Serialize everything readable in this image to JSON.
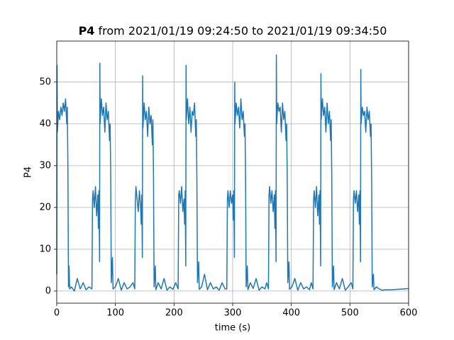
{
  "chart_data": {
    "type": "line",
    "title": {
      "bold": "P4",
      "text": "from 2021/01/19 09:24:50 to 2021/01/19 09:34:50"
    },
    "xlabel": "time (s)",
    "ylabel": "P4",
    "color": "#1f77b4",
    "grid": true,
    "xlim": [
      0,
      600
    ],
    "xticks": [
      0,
      100,
      200,
      300,
      400,
      500,
      600
    ],
    "ylim": [
      -2.9,
      59.8
    ],
    "yticks": [
      0,
      10,
      20,
      30,
      40,
      50
    ],
    "x": [
      0,
      0.5,
      1,
      3,
      5,
      7,
      9,
      11,
      13,
      15,
      17,
      18,
      19,
      20,
      21,
      22,
      25,
      30,
      35,
      40,
      45,
      50,
      55,
      60,
      61,
      62,
      64,
      66,
      68,
      70,
      71,
      72,
      73,
      73.5,
      74,
      76,
      78,
      80,
      82,
      84,
      86,
      88,
      90,
      91,
      92,
      93,
      95,
      96,
      100,
      105,
      110,
      115,
      120,
      125,
      130,
      133,
      134,
      135,
      137,
      139,
      141,
      143,
      144,
      145,
      146,
      146.5,
      147,
      149,
      151,
      153,
      155,
      157,
      159,
      161,
      163,
      164,
      165,
      166,
      168,
      169,
      173,
      178,
      183,
      188,
      193,
      198,
      203,
      207,
      208,
      209,
      211,
      213,
      215,
      217,
      218,
      219,
      220,
      220.5,
      221,
      223,
      225,
      227,
      229,
      231,
      233,
      235,
      237,
      238,
      239,
      240,
      242,
      243,
      247,
      252,
      257,
      262,
      267,
      272,
      277,
      282,
      287,
      290,
      291,
      292,
      294,
      296,
      298,
      300,
      301,
      302,
      303,
      303.5,
      304,
      306,
      308,
      310,
      312,
      314,
      316,
      318,
      320,
      321,
      322,
      323,
      325,
      326,
      330,
      335,
      340,
      345,
      350,
      355,
      358,
      361,
      362,
      363,
      365,
      367,
      369,
      371,
      372,
      373,
      374,
      374.5,
      375,
      377,
      379,
      381,
      383,
      385,
      387,
      389,
      391,
      392,
      393,
      394,
      396,
      397,
      401,
      406,
      411,
      416,
      421,
      426,
      431,
      434,
      437,
      438,
      439,
      441,
      443,
      445,
      447,
      448,
      449,
      450,
      450.5,
      451,
      453,
      455,
      457,
      459,
      461,
      463,
      465,
      467,
      468,
      469,
      470,
      472,
      473,
      477,
      482,
      487,
      492,
      497,
      502,
      505,
      506,
      507,
      509,
      511,
      513,
      515,
      516,
      517,
      518,
      518.5,
      519,
      521,
      523,
      525,
      527,
      529,
      531,
      533,
      535,
      536,
      537,
      538,
      540,
      541,
      545,
      550,
      555,
      560,
      570,
      580,
      590,
      600
    ],
    "values": [
      4,
      54,
      38,
      43,
      41,
      44,
      42,
      45,
      43,
      46,
      40,
      44,
      30,
      1,
      6,
      0.5,
      1,
      0,
      3,
      0.5,
      2,
      0.3,
      1,
      0.5,
      22,
      24,
      20,
      25,
      18,
      23,
      15,
      24,
      7,
      54.5,
      40,
      46,
      42,
      44,
      38,
      45,
      41,
      43,
      36,
      40,
      28,
      2,
      8,
      0.5,
      1,
      3,
      0.2,
      2,
      0.5,
      1,
      2,
      0.5,
      21,
      25,
      22,
      19,
      24,
      20,
      16,
      23,
      8,
      51.5,
      39,
      45,
      41,
      43,
      37,
      44,
      40,
      42,
      35,
      41,
      27,
      1,
      6,
      0.3,
      2,
      0.5,
      3,
      0.2,
      1,
      0.4,
      2,
      0.5,
      23,
      24,
      21,
      25,
      19,
      22,
      16,
      24,
      6,
      54,
      41,
      46,
      40,
      44,
      38,
      43,
      42,
      45,
      37,
      41,
      26,
      2,
      7,
      0.4,
      1,
      4,
      0.3,
      2,
      0.5,
      1,
      0.2,
      2,
      0.5,
      0.5,
      22,
      24,
      20,
      24,
      21,
      23,
      17,
      24,
      8,
      50,
      40,
      45,
      42,
      44,
      39,
      46,
      41,
      43,
      37,
      40,
      27,
      1,
      6,
      0.3,
      2,
      0.6,
      3,
      0.2,
      1,
      0.5,
      2,
      0.5,
      23,
      25,
      21,
      24,
      19,
      23,
      15,
      24,
      7,
      56.5,
      40,
      45,
      43,
      44,
      38,
      45,
      41,
      43,
      36,
      40,
      28,
      2,
      7,
      0.4,
      1,
      3,
      0.2,
      2,
      0.5,
      1,
      0.3,
      2,
      0.5,
      22,
      24,
      20,
      25,
      18,
      23,
      16,
      24,
      6,
      52,
      41,
      46,
      42,
      44,
      38,
      45,
      40,
      43,
      36,
      41,
      27,
      1,
      6,
      0.3,
      2,
      0.5,
      3,
      0.2,
      1,
      2,
      0.5,
      22,
      24,
      21,
      24,
      19,
      23,
      16,
      24,
      7,
      53,
      40,
      44,
      42,
      43,
      38,
      44,
      41,
      43,
      37,
      40,
      26,
      1,
      4,
      0.3,
      1,
      0.5,
      0.2,
      0.3,
      0.3,
      0.4,
      0.5,
      0.6
    ]
  }
}
